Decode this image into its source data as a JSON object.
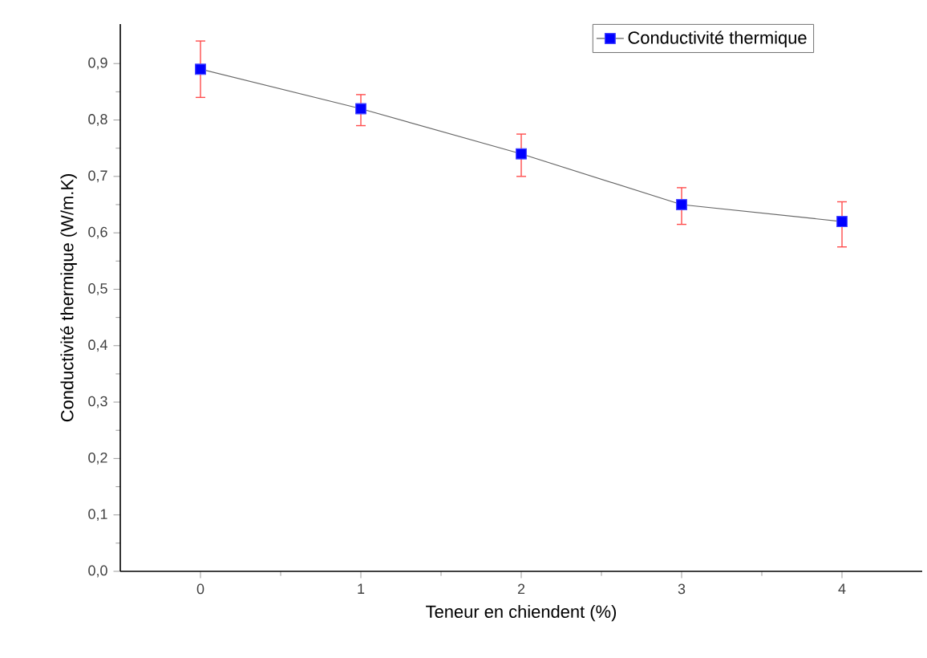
{
  "chart_data": {
    "type": "line",
    "xlabel": "Teneur en chiendent (%)",
    "ylabel": "Conductivité thermique (W/m.K)",
    "x": [
      0,
      1,
      2,
      3,
      4
    ],
    "series": [
      {
        "name": "Conductivité thermique",
        "color": "#0000ff",
        "values": [
          0.89,
          0.82,
          0.74,
          0.65,
          0.62
        ],
        "errors": [
          [
            0.84,
            0.94
          ],
          [
            0.79,
            0.845
          ],
          [
            0.7,
            0.775
          ],
          [
            0.615,
            0.68
          ],
          [
            0.575,
            0.655
          ]
        ]
      }
    ],
    "xlim": [
      -0.5,
      4.5
    ],
    "ylim": [
      0,
      0.97
    ],
    "xticks": [
      0,
      1,
      2,
      3,
      4
    ],
    "yticks": [
      {
        "value": 0,
        "label": "0,0"
      },
      {
        "value": 0.1,
        "label": "0,1"
      },
      {
        "value": 0.2,
        "label": "0,2"
      },
      {
        "value": 0.3,
        "label": "0,3"
      },
      {
        "value": 0.4,
        "label": "0,4"
      },
      {
        "value": 0.5,
        "label": "0,5"
      },
      {
        "value": 0.6,
        "label": "0,6"
      },
      {
        "value": 0.7,
        "label": "0,7"
      },
      {
        "value": 0.8,
        "label": "0,8"
      },
      {
        "value": 0.9,
        "label": "0,9"
      }
    ],
    "marker": "square",
    "line_style": "solid",
    "legend": "top right",
    "grid": false
  }
}
